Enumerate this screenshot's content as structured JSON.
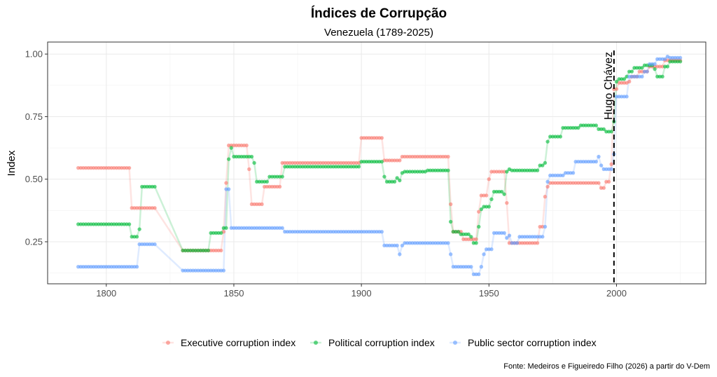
{
  "chart_data": {
    "type": "line",
    "title": "Índices de Corrupção",
    "subtitle": "Venezuela (1789-2025)",
    "xlabel": "",
    "ylabel": "Index",
    "xlim": [
      1777,
      2035
    ],
    "ylim": [
      0.082,
      1.048
    ],
    "x_ticks": [
      1800,
      1850,
      1900,
      1950,
      2000
    ],
    "x_tick_labels": [
      "1800",
      "1850",
      "1900",
      "1950",
      "2000"
    ],
    "y_ticks": [
      0.25,
      0.5,
      0.75,
      1.0
    ],
    "y_tick_labels": [
      "0.25",
      "0.50",
      "0.75",
      "1.00"
    ],
    "grid": true,
    "legend_position": "bottom",
    "annotation": {
      "year": 1999,
      "label": "Hugo Chávez"
    },
    "caption": "Fonte: Medeiros e Figueiredo Filho (2026) a partir do V-Dem",
    "series_format": "segments of [start_year, end_year, value]",
    "series": [
      {
        "name": "Executive corruption index",
        "color": "#F8766D",
        "segments": [
          [
            1789,
            1809,
            0.545
          ],
          [
            1810,
            1819,
            0.385
          ],
          [
            1830,
            1845,
            0.215
          ],
          [
            1846,
            1846,
            0.29
          ],
          [
            1847,
            1847,
            0.485
          ],
          [
            1848,
            1855,
            0.635
          ],
          [
            1856,
            1856,
            0.54
          ],
          [
            1857,
            1861,
            0.4
          ],
          [
            1862,
            1868,
            0.47
          ],
          [
            1869,
            1899,
            0.565
          ],
          [
            1900,
            1908,
            0.665
          ],
          [
            1909,
            1915,
            0.575
          ],
          [
            1916,
            1934,
            0.59
          ],
          [
            1935,
            1935,
            0.4
          ],
          [
            1936,
            1939,
            0.29
          ],
          [
            1940,
            1945,
            0.26
          ],
          [
            1946,
            1946,
            0.37
          ],
          [
            1947,
            1949,
            0.435
          ],
          [
            1950,
            1950,
            0.5
          ],
          [
            1951,
            1956,
            0.53
          ],
          [
            1957,
            1957,
            0.405
          ],
          [
            1958,
            1969,
            0.245
          ],
          [
            1970,
            1971,
            0.31
          ],
          [
            1972,
            1972,
            0.43
          ],
          [
            1973,
            1973,
            0.47
          ],
          [
            1974,
            1993,
            0.485
          ],
          [
            1994,
            1995,
            0.465
          ],
          [
            1996,
            1997,
            0.49
          ],
          [
            1998,
            1998,
            0.56
          ],
          [
            1999,
            2000,
            0.86
          ],
          [
            2001,
            2004,
            0.885
          ],
          [
            2005,
            2005,
            0.89
          ],
          [
            2006,
            2008,
            0.91
          ],
          [
            2009,
            2012,
            0.93
          ],
          [
            2013,
            2018,
            0.95
          ],
          [
            2019,
            2025,
            0.975
          ]
        ]
      },
      {
        "name": "Political corruption index",
        "color": "#00BA38",
        "segments": [
          [
            1789,
            1809,
            0.32
          ],
          [
            1810,
            1812,
            0.27
          ],
          [
            1813,
            1813,
            0.3
          ],
          [
            1814,
            1819,
            0.47
          ],
          [
            1830,
            1840,
            0.215
          ],
          [
            1841,
            1845,
            0.285
          ],
          [
            1846,
            1847,
            0.305
          ],
          [
            1848,
            1848,
            0.58
          ],
          [
            1849,
            1849,
            0.625
          ],
          [
            1850,
            1857,
            0.59
          ],
          [
            1858,
            1858,
            0.565
          ],
          [
            1859,
            1863,
            0.49
          ],
          [
            1864,
            1869,
            0.51
          ],
          [
            1870,
            1899,
            0.55
          ],
          [
            1900,
            1908,
            0.57
          ],
          [
            1909,
            1909,
            0.51
          ],
          [
            1910,
            1913,
            0.49
          ],
          [
            1914,
            1914,
            0.505
          ],
          [
            1915,
            1915,
            0.495
          ],
          [
            1916,
            1916,
            0.525
          ],
          [
            1917,
            1925,
            0.53
          ],
          [
            1926,
            1934,
            0.535
          ],
          [
            1935,
            1935,
            0.33
          ],
          [
            1936,
            1938,
            0.29
          ],
          [
            1939,
            1942,
            0.28
          ],
          [
            1943,
            1943,
            0.27
          ],
          [
            1944,
            1945,
            0.245
          ],
          [
            1946,
            1946,
            0.31
          ],
          [
            1947,
            1947,
            0.38
          ],
          [
            1948,
            1950,
            0.39
          ],
          [
            1951,
            1951,
            0.42
          ],
          [
            1952,
            1955,
            0.45
          ],
          [
            1956,
            1956,
            0.44
          ],
          [
            1957,
            1957,
            0.53
          ],
          [
            1958,
            1958,
            0.54
          ],
          [
            1959,
            1969,
            0.535
          ],
          [
            1970,
            1971,
            0.555
          ],
          [
            1972,
            1972,
            0.565
          ],
          [
            1973,
            1973,
            0.65
          ],
          [
            1974,
            1978,
            0.67
          ],
          [
            1979,
            1985,
            0.705
          ],
          [
            1986,
            1992,
            0.715
          ],
          [
            1993,
            1995,
            0.7
          ],
          [
            1996,
            1998,
            0.69
          ],
          [
            1999,
            1999,
            0.73
          ],
          [
            2000,
            2000,
            0.89
          ],
          [
            2001,
            2003,
            0.9
          ],
          [
            2004,
            2004,
            0.91
          ],
          [
            2005,
            2006,
            0.93
          ],
          [
            2007,
            2010,
            0.945
          ],
          [
            2011,
            2014,
            0.955
          ],
          [
            2015,
            2015,
            0.94
          ],
          [
            2016,
            2018,
            0.91
          ],
          [
            2019,
            2020,
            0.95
          ],
          [
            2021,
            2025,
            0.97
          ]
        ]
      },
      {
        "name": "Public sector corruption index",
        "color": "#619CFF",
        "segments": [
          [
            1789,
            1812,
            0.15
          ],
          [
            1813,
            1819,
            0.24
          ],
          [
            1830,
            1846,
            0.135
          ],
          [
            1847,
            1848,
            0.46
          ],
          [
            1849,
            1869,
            0.305
          ],
          [
            1870,
            1908,
            0.29
          ],
          [
            1909,
            1914,
            0.235
          ],
          [
            1915,
            1915,
            0.2
          ],
          [
            1916,
            1916,
            0.235
          ],
          [
            1917,
            1934,
            0.245
          ],
          [
            1935,
            1935,
            0.2
          ],
          [
            1936,
            1943,
            0.15
          ],
          [
            1944,
            1946,
            0.12
          ],
          [
            1947,
            1947,
            0.15
          ],
          [
            1948,
            1948,
            0.2
          ],
          [
            1949,
            1951,
            0.22
          ],
          [
            1952,
            1956,
            0.285
          ],
          [
            1957,
            1957,
            0.265
          ],
          [
            1958,
            1958,
            0.275
          ],
          [
            1959,
            1961,
            0.245
          ],
          [
            1962,
            1971,
            0.27
          ],
          [
            1972,
            1972,
            0.31
          ],
          [
            1973,
            1973,
            0.49
          ],
          [
            1974,
            1979,
            0.515
          ],
          [
            1980,
            1983,
            0.525
          ],
          [
            1984,
            1992,
            0.57
          ],
          [
            1993,
            1993,
            0.59
          ],
          [
            1994,
            1994,
            0.555
          ],
          [
            1995,
            1998,
            0.54
          ],
          [
            1999,
            1999,
            0.6
          ],
          [
            2000,
            2004,
            0.83
          ],
          [
            2005,
            2010,
            0.91
          ],
          [
            2011,
            2012,
            0.93
          ],
          [
            2013,
            2015,
            0.96
          ],
          [
            2016,
            2019,
            0.98
          ],
          [
            2020,
            2020,
            0.99
          ],
          [
            2021,
            2025,
            0.985
          ]
        ]
      }
    ]
  }
}
